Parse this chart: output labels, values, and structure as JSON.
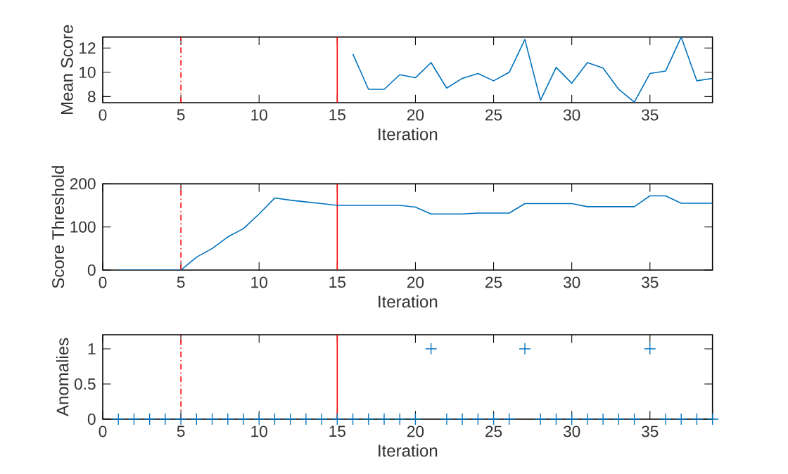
{
  "chart_data": [
    {
      "type": "line",
      "ylabel": "Mean Score",
      "xlabel": "Iteration",
      "xlim": [
        0,
        39
      ],
      "ylim": [
        7.5,
        12.9
      ],
      "xticks": [
        0,
        5,
        10,
        15,
        20,
        25,
        30,
        35
      ],
      "yticks": [
        8,
        10,
        12
      ],
      "series": [
        {
          "color": "#0072bd",
          "x": [
            16,
            17,
            18,
            19,
            20,
            21,
            22,
            23,
            24,
            25,
            26,
            27,
            28,
            29,
            30,
            31,
            32,
            33,
            34,
            35,
            36,
            37,
            38,
            39
          ],
          "values": [
            11.5,
            8.6,
            8.6,
            9.8,
            9.55,
            10.8,
            8.7,
            9.5,
            9.9,
            9.3,
            10.0,
            12.7,
            7.7,
            10.4,
            9.1,
            10.8,
            10.35,
            8.6,
            7.55,
            9.9,
            10.1,
            12.9,
            9.3,
            9.5
          ]
        }
      ],
      "ref_lines": [
        {
          "axis": "x",
          "value": 5,
          "color": "#ff0000",
          "line_style": "dashdot"
        },
        {
          "axis": "x",
          "value": 15,
          "color": "#ff0000",
          "line_style": "solid"
        }
      ]
    },
    {
      "type": "line",
      "ylabel": "Score Threshold",
      "xlabel": "Iteration",
      "xlim": [
        0,
        39
      ],
      "ylim": [
        0,
        200
      ],
      "xticks": [
        0,
        5,
        10,
        15,
        20,
        25,
        30,
        35
      ],
      "yticks": [
        0,
        100,
        200
      ],
      "series": [
        {
          "color": "#0072bd",
          "x": [
            1,
            2,
            3,
            4,
            5,
            6,
            7,
            8,
            9,
            10,
            11,
            12,
            13,
            14,
            15,
            16,
            17,
            18,
            19,
            20,
            21,
            22,
            23,
            24,
            25,
            26,
            27,
            28,
            29,
            30,
            31,
            32,
            33,
            34,
            35,
            36,
            37,
            38,
            39
          ],
          "values": [
            0,
            0,
            0,
            0,
            0,
            30,
            50,
            77,
            96,
            130,
            167,
            162,
            158,
            154,
            150,
            150,
            150,
            150,
            150,
            146,
            130,
            130,
            130,
            132,
            132,
            132,
            154,
            154,
            154,
            154,
            147,
            147,
            147,
            147,
            172,
            172,
            155,
            155,
            155
          ]
        }
      ],
      "ref_lines": [
        {
          "axis": "x",
          "value": 5,
          "color": "#ff0000",
          "line_style": "dashdot"
        },
        {
          "axis": "x",
          "value": 15,
          "color": "#ff0000",
          "line_style": "solid"
        }
      ]
    },
    {
      "type": "scatter",
      "ylabel": "Anomalies",
      "xlabel": "Iteration",
      "xlim": [
        0,
        39
      ],
      "ylim": [
        0,
        1.2
      ],
      "xticks": [
        0,
        5,
        10,
        15,
        20,
        25,
        30,
        35
      ],
      "yticks": [
        0,
        0.5,
        1
      ],
      "marker": "cross",
      "series": [
        {
          "color": "#0072bd",
          "x": [
            1,
            2,
            3,
            4,
            5,
            6,
            7,
            8,
            9,
            10,
            11,
            12,
            13,
            14,
            15,
            16,
            17,
            18,
            19,
            20,
            21,
            22,
            23,
            24,
            25,
            26,
            27,
            28,
            29,
            30,
            31,
            32,
            33,
            34,
            35,
            36,
            37,
            38,
            39
          ],
          "values": [
            0,
            0,
            0,
            0,
            0,
            0,
            0,
            0,
            0,
            0,
            0,
            0,
            0,
            0,
            0,
            0,
            0,
            0,
            0,
            0,
            1,
            0,
            0,
            0,
            0,
            0,
            1,
            0,
            0,
            0,
            0,
            0,
            0,
            0,
            1,
            0,
            0,
            0,
            0
          ]
        }
      ],
      "ref_lines": [
        {
          "axis": "x",
          "value": 5,
          "color": "#ff0000",
          "line_style": "dashdot"
        },
        {
          "axis": "x",
          "value": 15,
          "color": "#ff0000",
          "line_style": "solid"
        }
      ]
    }
  ]
}
